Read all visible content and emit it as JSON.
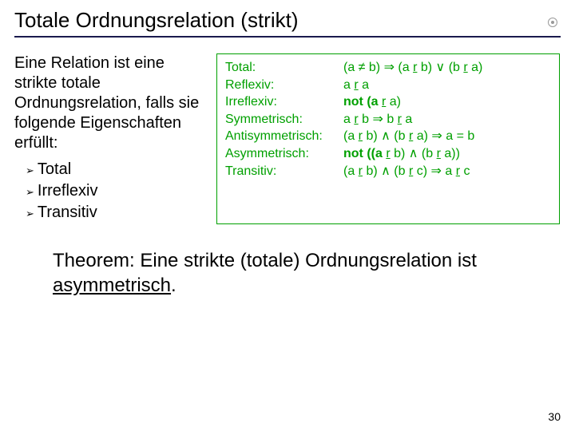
{
  "title": "Totale Ordnungsrelation (strikt)",
  "intro": "Eine Relation ist eine strikte totale Ordnungsrelation, falls sie folgende Eigenschaften erfüllt:",
  "bullets": [
    "Total",
    "Irreflexiv",
    "Transitiv"
  ],
  "box": {
    "rows": [
      {
        "label": "Total:",
        "plain": "(a ≠ b) ⇒ (a ",
        "r1": "r",
        "mid1": " b) ∨ (b ",
        "r2": "r",
        "tail": " a)"
      },
      {
        "label": "Reflexiv:",
        "plain": "a ",
        "r1": "r",
        "mid1": " a",
        "r2": "",
        "tail": ""
      },
      {
        "label": "Irreflexiv:",
        "plain": "not (a ",
        "r1": "r",
        "mid1": " a)",
        "r2": "",
        "tail": ""
      },
      {
        "label": "Symmetrisch:",
        "plain": "a ",
        "r1": "r",
        "mid1": " b  ⇒   b ",
        "r2": "r",
        "tail": " a"
      },
      {
        "label": "Antisymmetrisch:",
        "plain": "(a ",
        "r1": "r",
        "mid1": " b)  ∧  (b ",
        "r2": "r",
        "tail": " a)  ⇒  a = b"
      },
      {
        "label": "Asymmetrisch:",
        "plain": "not ((a ",
        "r1": "r",
        "mid1": " b)  ∧  (b ",
        "r2": "r",
        "tail": " a))"
      },
      {
        "label": "Transitiv:",
        "plain": "(a ",
        "r1": "r",
        "mid1": " b)  ∧  (b ",
        "r2": "r",
        "tail": " c)  ⇒  a ",
        "r3": "r",
        "tail2": " c"
      }
    ]
  },
  "theorem_pre": "Theorem: Eine strikte (totale) Ordnungsrelation ist ",
  "theorem_u": "asymmetrisch",
  "theorem_post": ".",
  "page_number": "30",
  "colors": {
    "box_border": "#00a000",
    "box_text": "#00a000",
    "divider": "#1a1a4d"
  }
}
